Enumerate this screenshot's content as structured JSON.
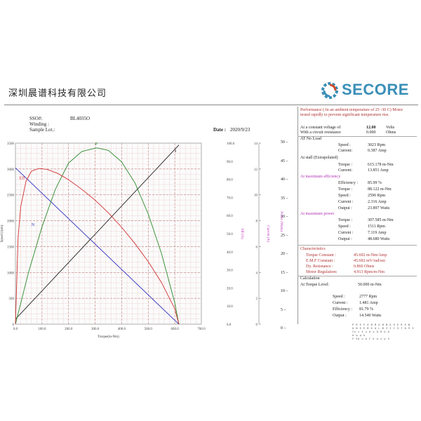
{
  "company": "深圳晨谱科技有限公司",
  "logo": {
    "text": "SECORE",
    "colors": {
      "gear": "#3a8fb7",
      "text": "#3a8fb7",
      "accent": "#d04a2a"
    }
  },
  "header": {
    "sso_label": "SSO#:",
    "sso_value": "BL4035O",
    "winding_label": "Winding :",
    "sample_label": "Sample Lot.:",
    "date_label": "Date :",
    "date_value": "2020/9/23"
  },
  "chart_data": {
    "type": "line",
    "x_axis": {
      "label": "Torque(m-Nm)",
      "range": [
        0,
        700
      ],
      "ticks": [
        "0.0",
        "100.0",
        "200.0",
        "300.0",
        "400.0",
        "500.0",
        "600.0",
        "700.0"
      ]
    },
    "axes": {
      "speed": {
        "label": "Speed (rpm)",
        "range": [
          0,
          3500
        ],
        "ticks": [
          "0",
          "500",
          "1000",
          "1500",
          "2000",
          "2500",
          "3000",
          "3500"
        ]
      },
      "eff": {
        "label": "Eff (%)",
        "range": [
          0,
          100
        ],
        "ticks": [
          "0.0",
          "10.0",
          "20.0",
          "30.0",
          "40.0",
          "50.0",
          "60.0",
          "70.0",
          "80.0",
          "90.0",
          "100.0"
        ]
      },
      "current": {
        "label": "Current (A)",
        "range": [
          0,
          14
        ],
        "ticks": [
          "0",
          "2",
          "4",
          "6",
          "8",
          "10",
          "12",
          "14"
        ]
      },
      "power": {
        "label": "Power (Watts)",
        "range": [
          0,
          50
        ],
        "ticks": [
          "0",
          "5",
          "10",
          "15",
          "20",
          "25",
          "30",
          "35",
          "40",
          "45",
          "50"
        ]
      }
    },
    "series": [
      {
        "name": "N",
        "axis": "speed",
        "color": "#3030c0",
        "x": [
          0,
          615.178
        ],
        "y": [
          3023,
          0
        ]
      },
      {
        "name": "I",
        "axis": "current",
        "color": "#222222",
        "x": [
          0,
          615.178
        ],
        "y": [
          0.387,
          13.851
        ]
      },
      {
        "name": "P",
        "axis": "power",
        "color": "#2a8a2a",
        "x": [
          0,
          50,
          100,
          150,
          200,
          250,
          300,
          307.585,
          350,
          400,
          450,
          500,
          550,
          600,
          615.178
        ],
        "y": [
          0,
          14.5,
          26.9,
          37.2,
          44.5,
          47.7,
          48.6,
          48.68,
          48.0,
          44.8,
          39.0,
          30.4,
          19.5,
          5.9,
          0
        ]
      },
      {
        "name": "Eff",
        "axis": "eff",
        "color": "#d03030",
        "x": [
          0,
          10,
          20,
          40,
          60,
          88.122,
          120,
          160,
          200,
          250,
          300,
          350,
          400,
          450,
          500,
          550,
          600,
          615.178
        ],
        "y": [
          0,
          48,
          65,
          79,
          84.5,
          85.99,
          85.5,
          83.2,
          79.8,
          74.5,
          68.5,
          61.5,
          53.5,
          44.5,
          34.5,
          23.0,
          8.5,
          0
        ]
      }
    ],
    "grid": true
  },
  "panel": {
    "performance_note": "Performance ( In an ambient temperature of 25 -30 C) Motor tested rapidly to prevent significant temperature rise.",
    "voltage_label": "At a constant voltage of",
    "voltage_value": "12.00",
    "voltage_unit": "Volts",
    "resistance_label": "With a circuit resistance",
    "resistance_value": "0.000",
    "resistance_unit": "Ohms",
    "no_load_title": "AT No Load",
    "no_load": [
      {
        "label": "Speed :",
        "value": "3023 Rpm"
      },
      {
        "label": "Current:",
        "value": "0.387 Amp"
      }
    ],
    "stall_title": "At stall (Extrapolated)",
    "stall": [
      {
        "label": "Torque :",
        "value": "615.178 m-Nm"
      },
      {
        "label": "Current:",
        "value": "13.851 Amp"
      }
    ],
    "maxeff_title": "At maximum efficiency",
    "maxeff": [
      {
        "label": "Efficiency :",
        "value": "85.99 %"
      },
      {
        "label": "Torque :",
        "value": "88.122 m-Nm"
      },
      {
        "label": "Speed :",
        "value": "2590 Rpm"
      },
      {
        "label": "Current :",
        "value": "2.316 Amp"
      },
      {
        "label": "Output :",
        "value": "23.897 Watts"
      }
    ],
    "maxpow_title": "At maximum power",
    "maxpow": [
      {
        "label": "Torque :",
        "value": "307.585 m-Nm"
      },
      {
        "label": "Speed :",
        "value": "1511 Rpm"
      },
      {
        "label": "Current :",
        "value": "7.119 Amp"
      },
      {
        "label": "Output :",
        "value": "48.680 Watts"
      }
    ],
    "char_title": "Characteristics",
    "chars": [
      {
        "label": "Torque Constant :",
        "value": "45.692 m-Nm/Amp"
      },
      {
        "label": "E.M.F Constant :",
        "value": "45.692 mV/rad/sec"
      },
      {
        "label": "Dy. Resistance :",
        "value": "0.866 Ohms"
      },
      {
        "label": "Motor Regulation:",
        "value": "4.913 Rpm/m-Nm"
      }
    ],
    "calc_title": "Calculation",
    "calc_label": "At Torque Level:",
    "calc_value": "50.000 m-Nm",
    "calc": [
      {
        "label": "Speed :",
        "value": "2777 Rpm"
      },
      {
        "label": "Current :",
        "value": "1.481 Amp"
      },
      {
        "label": "Efficiency :",
        "value": "81.79 %"
      },
      {
        "label": "Output :",
        "value": "14.540 Watts"
      }
    ],
    "power_axis_label": "Power (Watts)",
    "power_ticks": [
      "50",
      "45",
      "40",
      "35",
      "30",
      "25",
      "20",
      "15",
      "10",
      "5",
      "0"
    ]
  },
  "smallprint": [
    "P R E F A B M O N B Q H E R E W",
    "Q N E E B K A L B Z Z C 5 7 0 9 3 L",
    "Ch v t u d y Q H & A",
    "d q g &",
    "F Ed u d C k a v w S"
  ]
}
